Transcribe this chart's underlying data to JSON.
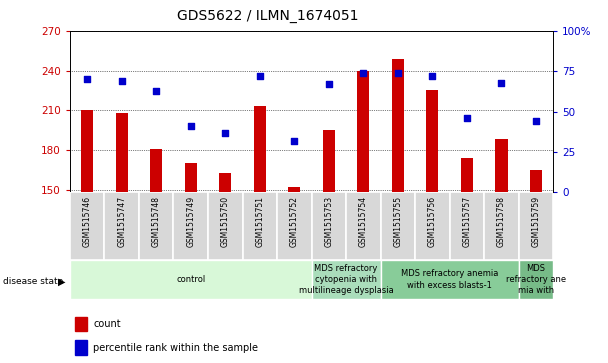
{
  "title": "GDS5622 / ILMN_1674051",
  "samples": [
    "GSM1515746",
    "GSM1515747",
    "GSM1515748",
    "GSM1515749",
    "GSM1515750",
    "GSM1515751",
    "GSM1515752",
    "GSM1515753",
    "GSM1515754",
    "GSM1515755",
    "GSM1515756",
    "GSM1515757",
    "GSM1515758",
    "GSM1515759"
  ],
  "counts": [
    210,
    208,
    181,
    170,
    163,
    213,
    152,
    195,
    240,
    249,
    225,
    174,
    188,
    165
  ],
  "percentile_ranks": [
    70,
    69,
    63,
    41,
    37,
    72,
    32,
    67,
    74,
    74,
    72,
    46,
    68,
    44
  ],
  "ylim_left": [
    148,
    270
  ],
  "ylim_right": [
    0,
    100
  ],
  "yticks_left": [
    150,
    180,
    210,
    240,
    270
  ],
  "yticks_right": [
    0,
    25,
    50,
    75,
    100
  ],
  "bar_color": "#cc0000",
  "dot_color": "#0000cc",
  "bar_width": 0.35,
  "disease_groups": [
    {
      "label": "control",
      "start": 0,
      "end": 6,
      "color": "#ddffdd"
    },
    {
      "label": "MDS refractory\ncytopenia with\nmultilineage dysplasia",
      "start": 7,
      "end": 8,
      "color": "#bbeecc"
    },
    {
      "label": "MDS refractory anemia\nwith excess blasts-1",
      "start": 9,
      "end": 12,
      "color": "#88cc88"
    },
    {
      "label": "MDS\nrefractory ane\nmia with",
      "start": 13,
      "end": 13,
      "color": "#66bb66"
    }
  ],
  "legend_count_label": "count",
  "legend_pct_label": "percentile rank within the sample",
  "disease_label": "disease state",
  "tick_label_color_left": "#cc0000",
  "tick_label_color_right": "#0000cc",
  "sample_box_color": "#d8d8d8",
  "title_fontsize": 10,
  "axis_fontsize": 7.5,
  "legend_fontsize": 7,
  "disease_fontsize": 6
}
